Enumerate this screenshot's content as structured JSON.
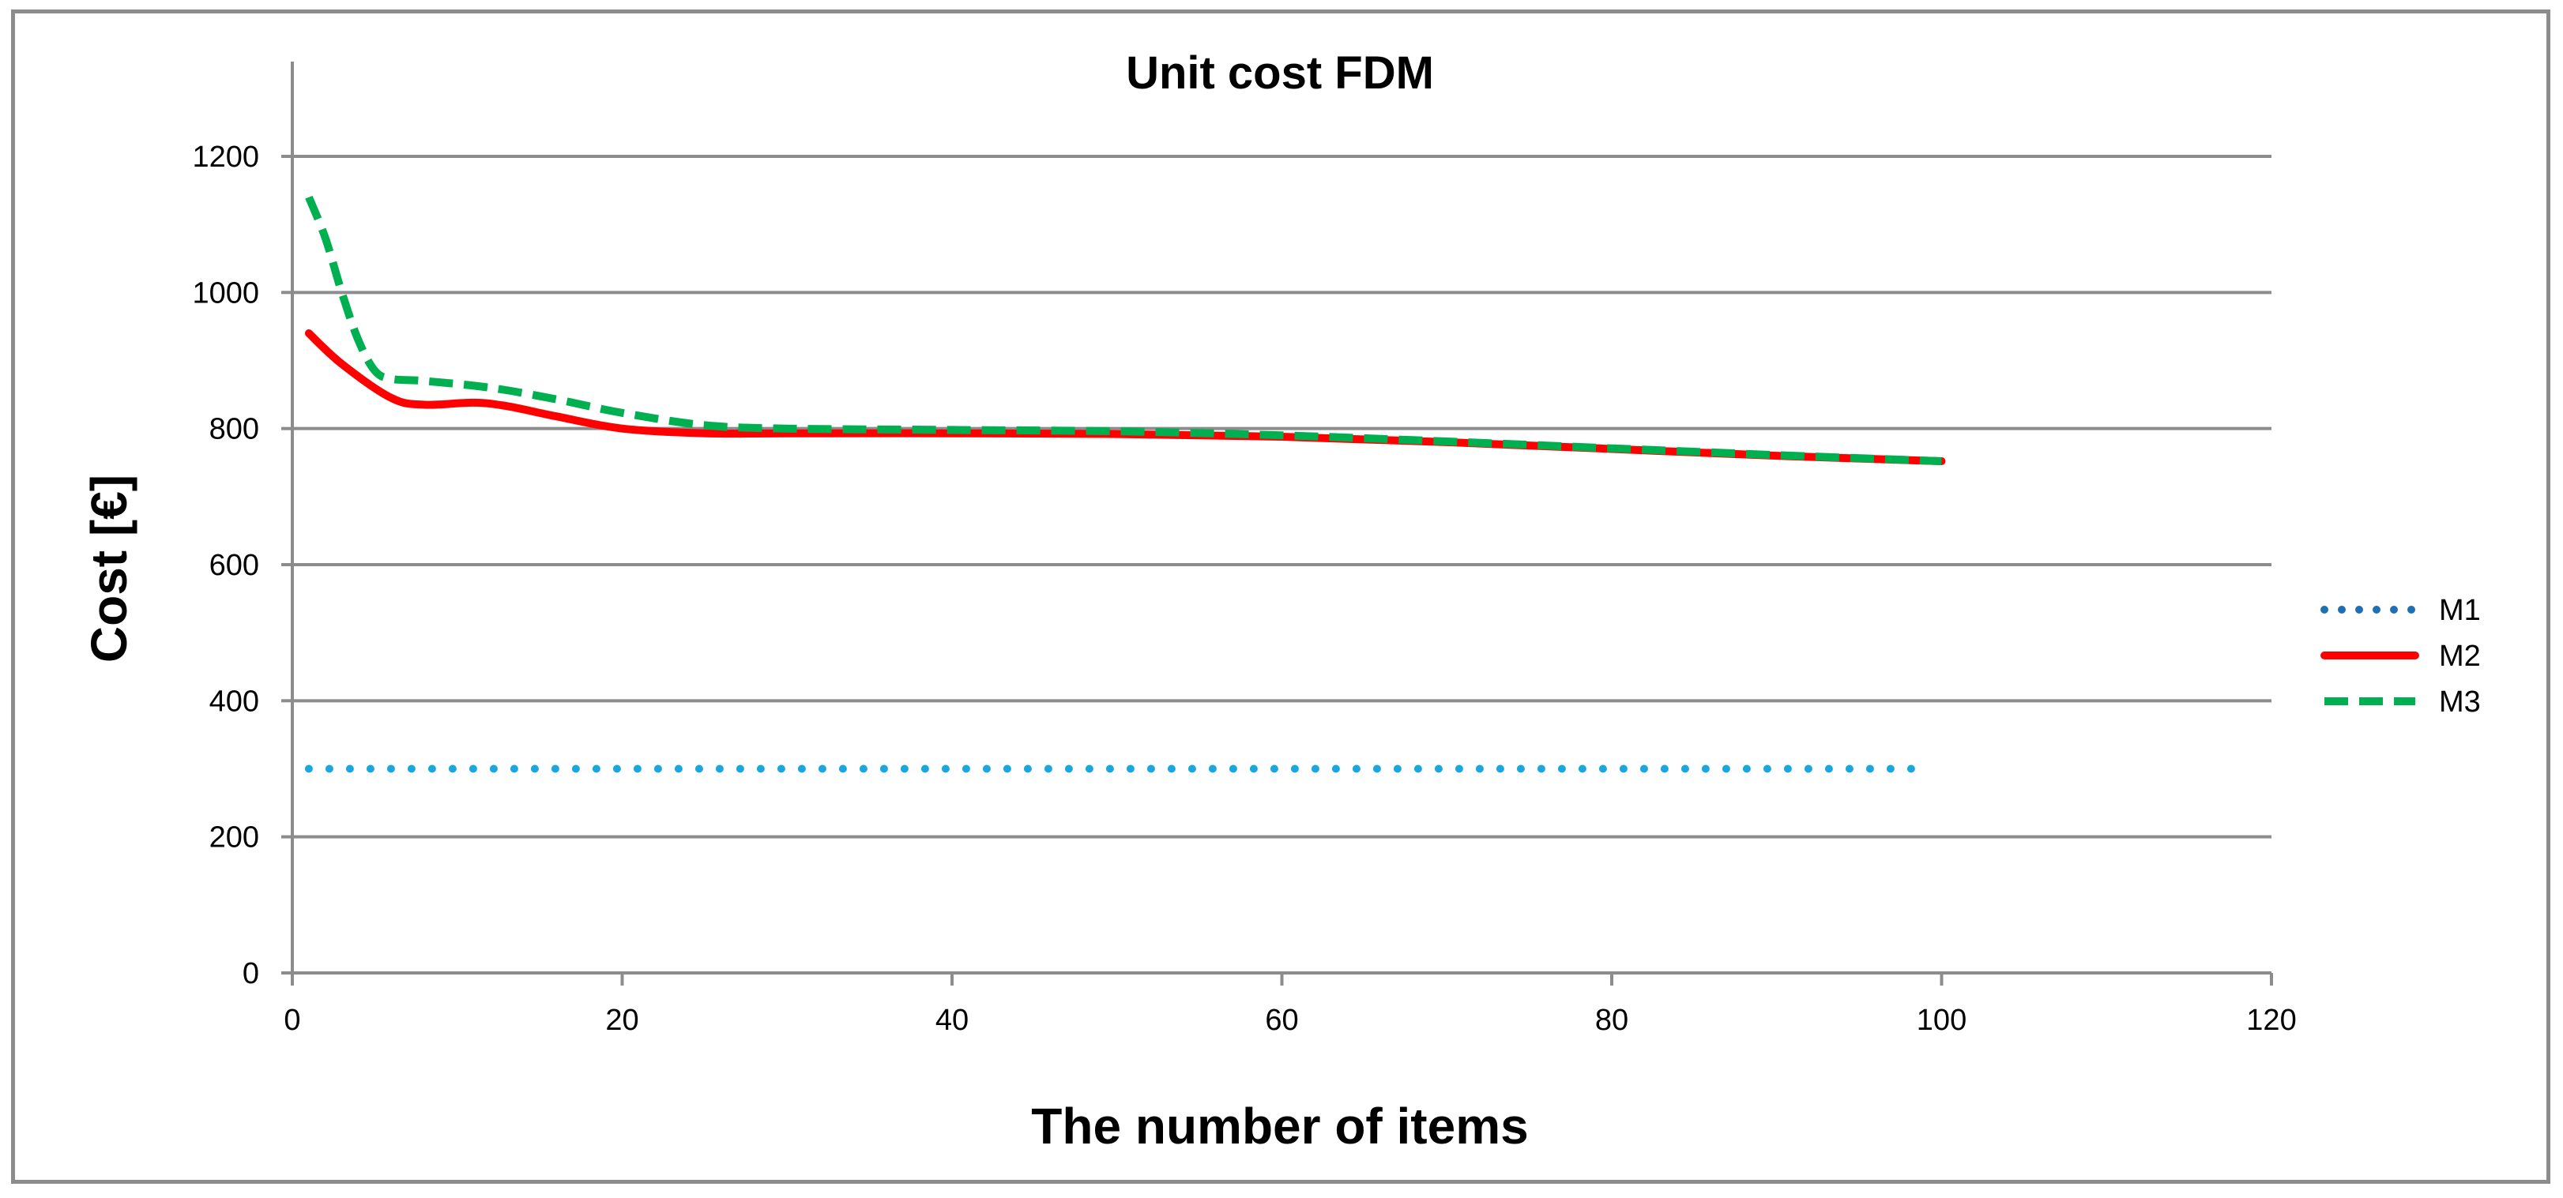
{
  "chart_data": {
    "type": "line",
    "title": "Unit cost FDM",
    "xlabel": "The number of items",
    "ylabel": "Cost [€]",
    "xlim": [
      0,
      120
    ],
    "ylim": [
      0,
      1200
    ],
    "x_ticks": [
      0,
      20,
      40,
      60,
      80,
      100,
      120
    ],
    "y_ticks": [
      0,
      200,
      400,
      600,
      800,
      1000,
      1200
    ],
    "grid": "horizontal",
    "legend_position": "right",
    "series": [
      {
        "name": "M1",
        "style": "dotted",
        "color": "#1aa6e0",
        "legend_color": "#1f6fb5",
        "x": [
          1,
          10,
          20,
          30,
          40,
          50,
          60,
          70,
          80,
          90,
          99
        ],
        "y": [
          300,
          300,
          300,
          300,
          300,
          300,
          300,
          300,
          300,
          300,
          300
        ]
      },
      {
        "name": "M2",
        "style": "solid",
        "color": "#ff0000",
        "x": [
          1,
          3,
          6,
          8,
          11,
          13,
          16,
          20,
          25,
          30,
          40,
          50,
          60,
          70,
          80,
          90,
          100
        ],
        "y": [
          940,
          895,
          845,
          835,
          838,
          833,
          818,
          800,
          793,
          793,
          793,
          792,
          788,
          780,
          770,
          760,
          752
        ]
      },
      {
        "name": "M3",
        "style": "dashed",
        "color": "#00b050",
        "x": [
          1,
          2,
          3,
          4,
          5,
          6,
          8,
          12,
          16,
          20,
          25,
          30,
          40,
          50,
          60,
          70,
          80,
          90,
          100
        ],
        "y": [
          1140,
          1080,
          1000,
          930,
          885,
          873,
          870,
          860,
          843,
          823,
          805,
          800,
          798,
          796,
          790,
          781,
          771,
          761,
          752
        ]
      }
    ]
  }
}
